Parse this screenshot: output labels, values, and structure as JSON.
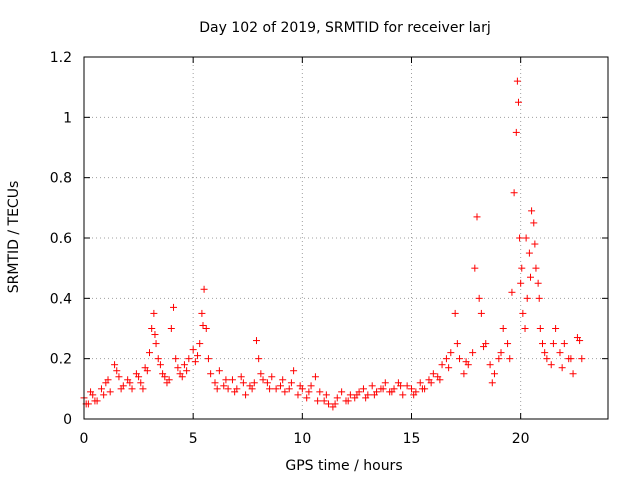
{
  "chart_data": {
    "type": "scatter",
    "title": "Day 102 of 2019, SRMTID for receiver larj",
    "xlabel": "GPS time / hours",
    "ylabel": "SRMTID / TECUs",
    "xlim": [
      0,
      24
    ],
    "ylim": [
      0,
      1.2
    ],
    "grid": true,
    "legend": "none",
    "x_ticks": [
      0,
      5,
      10,
      15,
      20
    ],
    "x_tick_labels": [
      "0",
      "5",
      "10",
      "15",
      "20"
    ],
    "y_ticks": [
      0,
      0.2,
      0.4,
      0.6,
      0.8,
      1,
      1.2
    ],
    "y_tick_labels": [
      "0",
      "0.2",
      "0.4",
      "0.6",
      "0.8",
      "1",
      "1.2"
    ],
    "marker_color": "#ff0000",
    "series": [
      {
        "name": "SRMTID",
        "x": [
          0.0,
          0.2,
          0.4,
          0.6,
          0.8,
          1.0,
          1.2,
          1.4,
          1.6,
          1.8,
          2.0,
          2.2,
          2.4,
          2.6,
          2.8,
          3.0,
          3.1,
          3.2,
          3.3,
          3.4,
          3.6,
          3.8,
          4.0,
          4.1,
          4.2,
          4.4,
          4.6,
          4.8,
          5.0,
          5.2,
          5.4,
          5.5,
          5.6,
          5.8,
          6.0,
          6.2,
          6.4,
          6.6,
          6.8,
          7.0,
          7.2,
          7.4,
          7.6,
          7.8,
          7.9,
          8.0,
          8.2,
          8.4,
          8.6,
          8.8,
          9.0,
          9.2,
          9.4,
          9.6,
          9.8,
          10.0,
          10.2,
          10.4,
          10.6,
          10.8,
          11.0,
          11.2,
          11.4,
          11.6,
          11.8,
          12.0,
          12.2,
          12.4,
          12.6,
          12.8,
          13.0,
          13.2,
          13.4,
          13.6,
          13.8,
          14.0,
          14.2,
          14.4,
          14.6,
          14.8,
          15.0,
          15.2,
          15.4,
          15.6,
          15.8,
          16.0,
          16.2,
          16.4,
          16.6,
          16.8,
          17.0,
          17.2,
          17.4,
          17.6,
          17.8,
          17.9,
          18.0,
          18.1,
          18.2,
          18.4,
          18.6,
          18.8,
          19.0,
          19.2,
          19.4,
          19.6,
          19.7,
          19.8,
          19.85,
          19.9,
          19.95,
          20.0,
          20.1,
          20.2,
          20.3,
          20.4,
          20.5,
          20.6,
          20.7,
          20.8,
          20.9,
          21.0,
          21.2,
          21.4,
          21.6,
          21.8,
          22.0,
          22.2,
          22.4,
          22.6,
          22.8,
          0.1,
          0.3,
          0.5,
          0.9,
          1.1,
          1.5,
          1.7,
          2.1,
          2.5,
          2.7,
          2.9,
          3.25,
          3.5,
          3.7,
          3.9,
          4.3,
          4.5,
          4.7,
          5.1,
          5.3,
          5.45,
          5.7,
          6.1,
          6.5,
          6.9,
          7.3,
          7.7,
          8.1,
          8.5,
          9.1,
          9.5,
          9.9,
          10.3,
          10.7,
          11.1,
          11.5,
          12.1,
          12.5,
          12.9,
          13.3,
          13.7,
          14.1,
          14.5,
          15.1,
          15.5,
          15.9,
          16.3,
          16.7,
          17.1,
          17.5,
          18.3,
          18.7,
          19.1,
          19.5,
          20.05,
          20.25,
          20.45,
          20.65,
          20.85,
          21.1,
          21.5,
          21.9,
          22.3,
          22.7
        ],
        "y": [
          0.07,
          0.05,
          0.08,
          0.06,
          0.1,
          0.12,
          0.09,
          0.18,
          0.14,
          0.11,
          0.13,
          0.1,
          0.15,
          0.12,
          0.17,
          0.22,
          0.3,
          0.35,
          0.25,
          0.2,
          0.15,
          0.12,
          0.3,
          0.37,
          0.2,
          0.15,
          0.18,
          0.2,
          0.23,
          0.21,
          0.35,
          0.43,
          0.3,
          0.15,
          0.12,
          0.16,
          0.11,
          0.1,
          0.13,
          0.1,
          0.14,
          0.08,
          0.11,
          0.12,
          0.26,
          0.2,
          0.13,
          0.12,
          0.14,
          0.1,
          0.11,
          0.09,
          0.1,
          0.16,
          0.08,
          0.1,
          0.07,
          0.11,
          0.14,
          0.09,
          0.06,
          0.05,
          0.04,
          0.07,
          0.09,
          0.06,
          0.08,
          0.07,
          0.09,
          0.1,
          0.08,
          0.11,
          0.09,
          0.1,
          0.12,
          0.09,
          0.1,
          0.12,
          0.08,
          0.11,
          0.1,
          0.09,
          0.12,
          0.1,
          0.13,
          0.15,
          0.14,
          0.18,
          0.2,
          0.22,
          0.35,
          0.2,
          0.15,
          0.18,
          0.22,
          0.5,
          0.67,
          0.4,
          0.35,
          0.25,
          0.18,
          0.15,
          0.2,
          0.3,
          0.25,
          0.42,
          0.75,
          0.95,
          1.12,
          1.05,
          0.6,
          0.45,
          0.35,
          0.3,
          0.4,
          0.55,
          0.69,
          0.65,
          0.5,
          0.45,
          0.3,
          0.25,
          0.2,
          0.18,
          0.3,
          0.22,
          0.25,
          0.2,
          0.15,
          0.27,
          0.2,
          0.05,
          0.09,
          0.06,
          0.08,
          0.13,
          0.16,
          0.1,
          0.12,
          0.14,
          0.1,
          0.16,
          0.28,
          0.18,
          0.14,
          0.13,
          0.17,
          0.14,
          0.16,
          0.19,
          0.25,
          0.31,
          0.2,
          0.1,
          0.13,
          0.09,
          0.12,
          0.1,
          0.15,
          0.1,
          0.13,
          0.12,
          0.11,
          0.09,
          0.06,
          0.08,
          0.05,
          0.06,
          0.08,
          0.07,
          0.08,
          0.1,
          0.09,
          0.11,
          0.08,
          0.1,
          0.12,
          0.13,
          0.17,
          0.25,
          0.19,
          0.24,
          0.12,
          0.22,
          0.2,
          0.5,
          0.6,
          0.47,
          0.58,
          0.4,
          0.22,
          0.25,
          0.17,
          0.2,
          0.26
        ]
      }
    ]
  }
}
